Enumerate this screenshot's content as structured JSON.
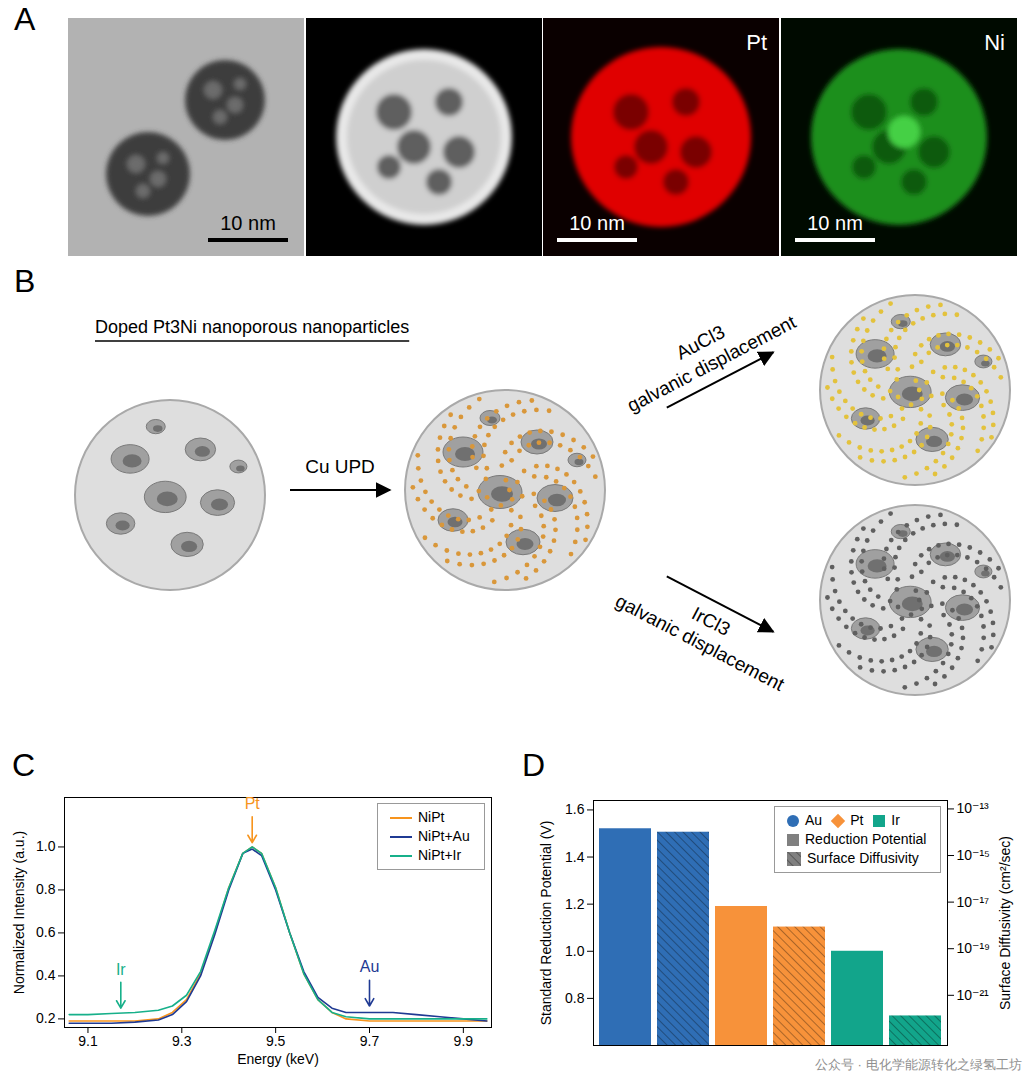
{
  "panel_labels": [
    "A",
    "B",
    "C",
    "D"
  ],
  "panel_a": {
    "scale_bar": "10 nm",
    "maps": [
      "Pt",
      "Ni"
    ]
  },
  "panel_b": {
    "title": "Doped Pt3Ni nanoporous nanoparticles",
    "steps": [
      "Cu UPD"
    ],
    "branches": [
      {
        "reagent": "AuCl3",
        "process": "galvanic displacement"
      },
      {
        "reagent": "IrCl3",
        "process": "galvanic displacement"
      }
    ]
  },
  "chart_data": [
    {
      "type": "line",
      "x_label": "Energy (keV)",
      "y_label": "Normalized Intensity (a.u.)",
      "x": [
        9.06,
        9.1,
        9.15,
        9.2,
        9.25,
        9.28,
        9.31,
        9.34,
        9.37,
        9.4,
        9.43,
        9.45,
        9.47,
        9.5,
        9.53,
        9.56,
        9.59,
        9.62,
        9.65,
        9.7,
        9.75,
        9.8,
        9.85,
        9.9,
        9.95
      ],
      "series": [
        {
          "name": "NiPt",
          "color": "#f7941d",
          "values": [
            0.19,
            0.19,
            0.19,
            0.19,
            0.2,
            0.23,
            0.29,
            0.41,
            0.6,
            0.81,
            0.97,
            1.0,
            0.97,
            0.81,
            0.6,
            0.41,
            0.29,
            0.23,
            0.2,
            0.19,
            0.19,
            0.19,
            0.19,
            0.19,
            0.19
          ]
        },
        {
          "name": "NiPt+Au",
          "color": "#1f3a93",
          "values": [
            0.18,
            0.18,
            0.18,
            0.185,
            0.195,
            0.22,
            0.28,
            0.4,
            0.59,
            0.8,
            0.97,
            0.99,
            0.96,
            0.8,
            0.6,
            0.42,
            0.3,
            0.25,
            0.23,
            0.23,
            0.23,
            0.22,
            0.21,
            0.2,
            0.19
          ]
        },
        {
          "name": "NiPt+Ir",
          "color": "#17b08a",
          "values": [
            0.22,
            0.22,
            0.225,
            0.23,
            0.24,
            0.26,
            0.31,
            0.42,
            0.61,
            0.81,
            0.97,
            1.0,
            0.97,
            0.81,
            0.6,
            0.41,
            0.29,
            0.23,
            0.21,
            0.2,
            0.2,
            0.2,
            0.2,
            0.2,
            0.2
          ]
        }
      ],
      "xlim": [
        9.05,
        9.96
      ],
      "xticks": [
        9.1,
        9.3,
        9.5,
        9.7,
        9.9
      ],
      "ylim": [
        0.16,
        1.23
      ],
      "yticks": [
        0.2,
        0.4,
        0.6,
        0.8,
        {
          "value": 1,
          "label": "1.0"
        }
      ],
      "legend": "upper right",
      "annotations": [
        {
          "text": "Ir",
          "x": 9.17,
          "y": 0.25,
          "color": "#17b08a"
        },
        {
          "text": "Pt",
          "x": 9.45,
          "y": 1.02,
          "color": "#f7941d"
        },
        {
          "text": "Au",
          "x": 9.7,
          "y": 0.26,
          "color": "#1f3a93"
        }
      ]
    },
    {
      "type": "bar",
      "categories": [
        "Au",
        "Pt",
        "Ir"
      ],
      "colors": [
        "#2f6eb5",
        "#f7923a",
        "#12a58b"
      ],
      "marker": [
        "circle",
        "diamond",
        "square"
      ],
      "series": [
        {
          "name": "Reduction Potential",
          "color": "#808080",
          "line_style": "solid",
          "values": [
            1.52,
            1.19,
            1.0
          ]
        },
        {
          "name": "Surface Diffusivity",
          "color": "#808080",
          "line_style": "hatched",
          "axis": "y2",
          "values": [
            1e-14,
            8.5e-19,
            1.3e-22
          ]
        }
      ],
      "y_label": "Standard Reduction Potential (V)",
      "y2_label": "Surface Diffusivity (cm²/sec)",
      "ylim": [
        0.6,
        1.64
      ],
      "yticks": [
        0.8,
        {
          "value": 1,
          "label": "1.0"
        },
        1.2,
        1.4,
        1.6
      ],
      "y2lim": [
        7e-24,
        2.3e-13
      ],
      "y2ticks": [
        {
          "value": 1e-21,
          "label": "10⁻²¹"
        },
        {
          "value": 1e-19,
          "label": "10⁻¹⁹"
        },
        {
          "value": 1e-17,
          "label": "10⁻¹⁷"
        },
        {
          "value": 1e-15,
          "label": "10⁻¹⁵"
        },
        {
          "value": 1e-13,
          "label": "10⁻¹³"
        }
      ],
      "log": "y2",
      "legend": "upper right",
      "tick_labels": "y"
    }
  ],
  "watermark": "公众号 · 电化学能源转化之绿氢工坊"
}
